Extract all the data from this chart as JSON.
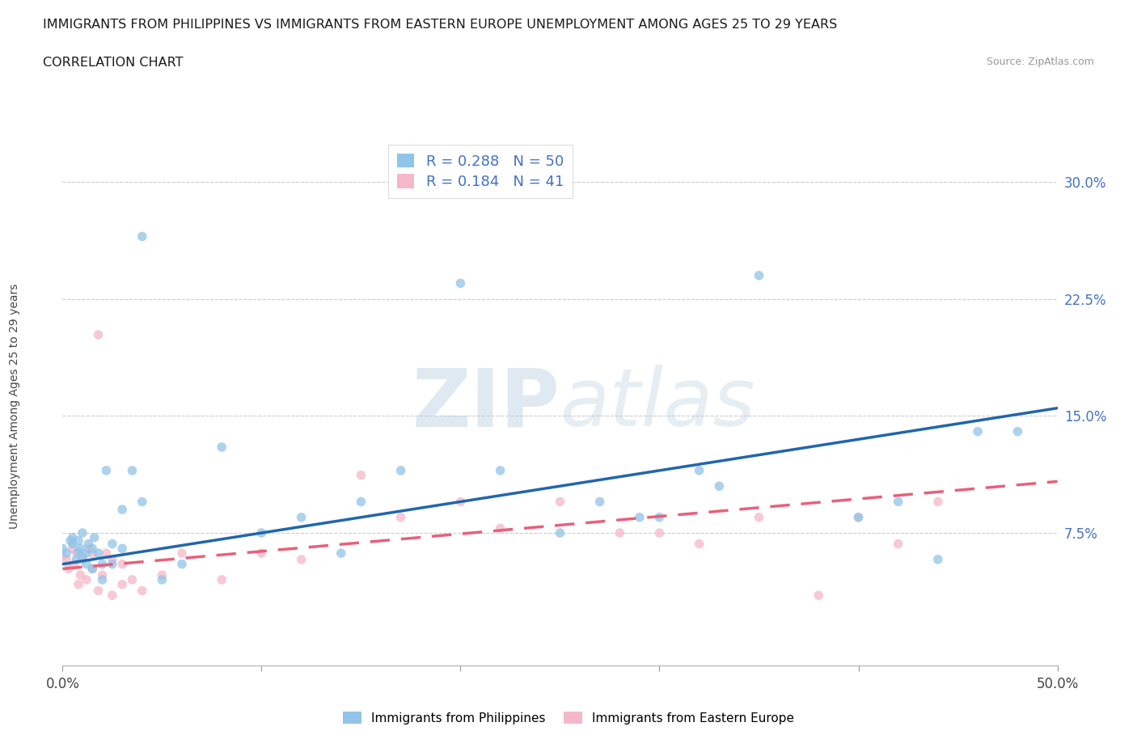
{
  "title_line1": "IMMIGRANTS FROM PHILIPPINES VS IMMIGRANTS FROM EASTERN EUROPE UNEMPLOYMENT AMONG AGES 25 TO 29 YEARS",
  "title_line2": "CORRELATION CHART",
  "source_text": "Source: ZipAtlas.com",
  "ylabel": "Unemployment Among Ages 25 to 29 years",
  "xlim": [
    0,
    0.5
  ],
  "ylim": [
    -0.01,
    0.325
  ],
  "ytick_labels_right": [
    "7.5%",
    "15.0%",
    "22.5%",
    "30.0%"
  ],
  "ytick_vals_right": [
    0.075,
    0.15,
    0.225,
    0.3
  ],
  "watermark_zip": "ZIP",
  "watermark_atlas": "atlas",
  "legend_blue_r": "R = 0.288",
  "legend_blue_n": "N = 50",
  "legend_pink_r": "R = 0.184",
  "legend_pink_n": "N = 41",
  "blue_color": "#90c4e8",
  "pink_color": "#f5b8c8",
  "blue_line_color": "#2166ac",
  "pink_line_color": "#e8607a",
  "blue_scatter_x": [
    0.0,
    0.002,
    0.004,
    0.005,
    0.005,
    0.007,
    0.008,
    0.008,
    0.009,
    0.01,
    0.01,
    0.012,
    0.012,
    0.013,
    0.015,
    0.015,
    0.016,
    0.018,
    0.02,
    0.02,
    0.022,
    0.025,
    0.025,
    0.03,
    0.03,
    0.035,
    0.04,
    0.04,
    0.05,
    0.06,
    0.08,
    0.1,
    0.12,
    0.14,
    0.15,
    0.17,
    0.2,
    0.22,
    0.25,
    0.27,
    0.29,
    0.3,
    0.32,
    0.33,
    0.35,
    0.4,
    0.42,
    0.44,
    0.46,
    0.48
  ],
  "blue_scatter_y": [
    0.065,
    0.062,
    0.07,
    0.068,
    0.072,
    0.058,
    0.063,
    0.07,
    0.065,
    0.06,
    0.075,
    0.055,
    0.062,
    0.068,
    0.052,
    0.065,
    0.072,
    0.062,
    0.045,
    0.055,
    0.115,
    0.055,
    0.068,
    0.065,
    0.09,
    0.115,
    0.095,
    0.265,
    0.045,
    0.055,
    0.13,
    0.075,
    0.085,
    0.062,
    0.095,
    0.115,
    0.235,
    0.115,
    0.075,
    0.095,
    0.085,
    0.085,
    0.115,
    0.105,
    0.24,
    0.085,
    0.095,
    0.058,
    0.14,
    0.14
  ],
  "pink_scatter_x": [
    0.0,
    0.002,
    0.003,
    0.005,
    0.006,
    0.007,
    0.008,
    0.009,
    0.01,
    0.012,
    0.013,
    0.015,
    0.015,
    0.018,
    0.018,
    0.02,
    0.022,
    0.025,
    0.025,
    0.03,
    0.03,
    0.035,
    0.04,
    0.05,
    0.06,
    0.08,
    0.1,
    0.12,
    0.15,
    0.17,
    0.2,
    0.22,
    0.25,
    0.28,
    0.3,
    0.32,
    0.35,
    0.38,
    0.4,
    0.42,
    0.44
  ],
  "pink_scatter_y": [
    0.06,
    0.058,
    0.052,
    0.065,
    0.055,
    0.062,
    0.042,
    0.048,
    0.058,
    0.045,
    0.065,
    0.052,
    0.062,
    0.038,
    0.202,
    0.048,
    0.062,
    0.035,
    0.058,
    0.042,
    0.055,
    0.045,
    0.038,
    0.048,
    0.062,
    0.045,
    0.062,
    0.058,
    0.112,
    0.085,
    0.095,
    0.078,
    0.095,
    0.075,
    0.075,
    0.068,
    0.085,
    0.035,
    0.085,
    0.068,
    0.095
  ],
  "blue_trend_x0": 0.0,
  "blue_trend_y0": 0.055,
  "blue_trend_x1": 0.5,
  "blue_trend_y1": 0.155,
  "pink_trend_x0": 0.0,
  "pink_trend_y0": 0.052,
  "pink_trend_x1": 0.5,
  "pink_trend_y1": 0.108
}
